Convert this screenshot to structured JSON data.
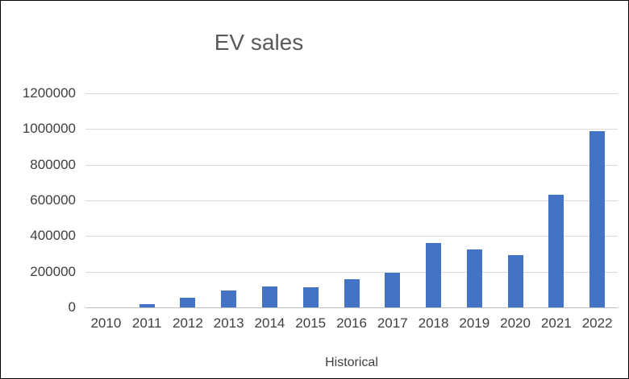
{
  "chart_data": {
    "type": "bar",
    "title": "EV sales",
    "xlabel": "Historical",
    "ylabel": "",
    "categories": [
      "2010",
      "2011",
      "2012",
      "2013",
      "2014",
      "2015",
      "2016",
      "2017",
      "2018",
      "2019",
      "2020",
      "2021",
      "2022"
    ],
    "values": [
      0,
      18000,
      53000,
      97000,
      118000,
      114000,
      159000,
      196000,
      360000,
      325000,
      295000,
      630000,
      990000
    ],
    "ylim": [
      0,
      1200000
    ],
    "yticks": [
      0,
      200000,
      400000,
      600000,
      800000,
      1000000,
      1200000
    ],
    "grid": true,
    "legend": "none",
    "bar_color": "#4472C4"
  },
  "colors": {
    "bar": "#4472C4",
    "gridline": "#d9d9d9",
    "axis_line": "#bfbfbf",
    "title_text": "#595959",
    "tick_text": "#404040",
    "frame_border": "#000000",
    "background": "#ffffff"
  }
}
